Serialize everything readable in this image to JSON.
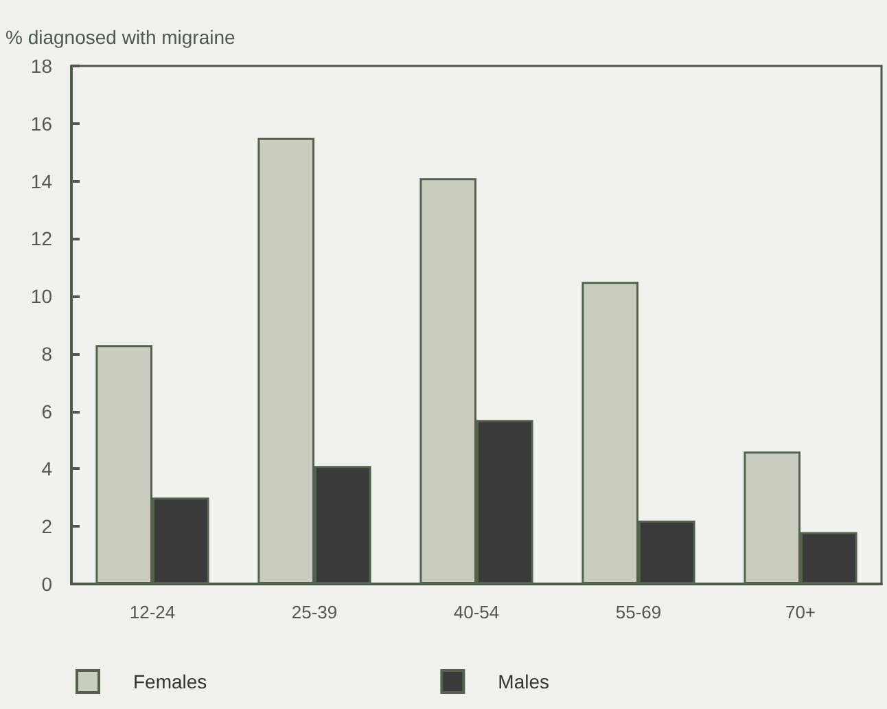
{
  "chart_data": {
    "type": "bar",
    "ylabel": "% diagnosed with migraine",
    "categories": [
      "12-24",
      "25-39",
      "40-54",
      "55-69",
      "70+"
    ],
    "series": [
      {
        "name": "Females",
        "color": "#c9ccbf",
        "values": [
          8.3,
          15.5,
          14.1,
          10.5,
          4.6
        ]
      },
      {
        "name": "Males",
        "color": "#3a3a3a",
        "values": [
          3.0,
          4.1,
          5.7,
          2.2,
          1.8
        ]
      }
    ],
    "ylim": [
      0,
      18
    ],
    "yticks": [
      0,
      2,
      4,
      6,
      8,
      10,
      12,
      14,
      16,
      18
    ],
    "grid": false,
    "legend": "bottom left"
  }
}
